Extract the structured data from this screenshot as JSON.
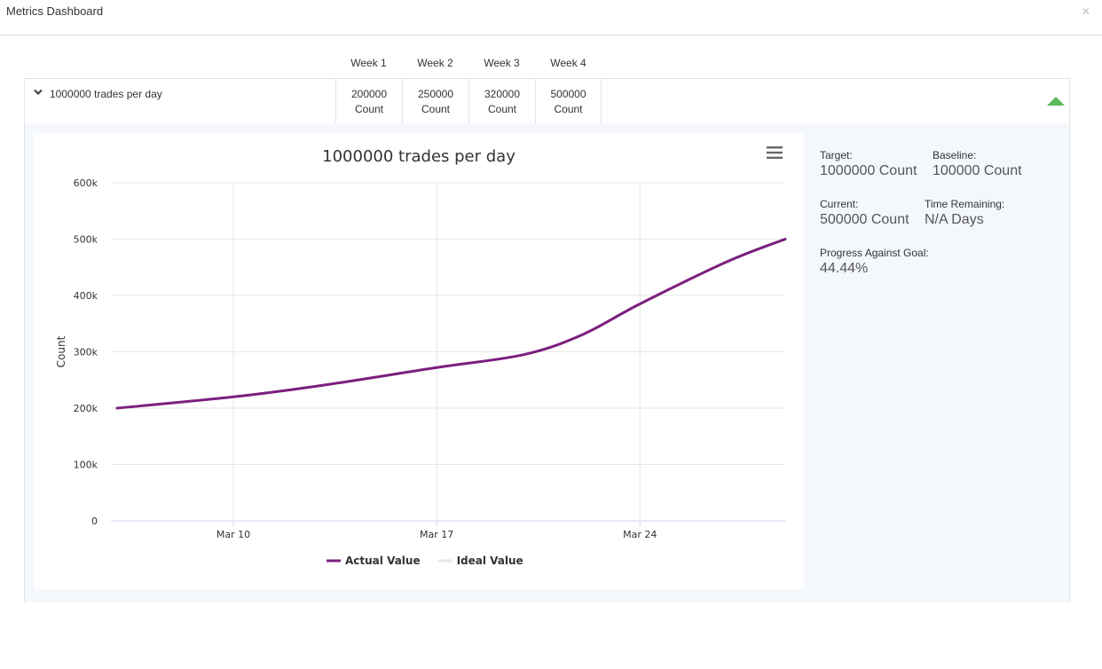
{
  "app": {
    "title": "Metrics Dashboard",
    "close_glyph": "×"
  },
  "weeks": [
    "Week 1",
    "Week 2",
    "Week 3",
    "Week 4"
  ],
  "metric": {
    "label": "1000000 trades per day",
    "cells": [
      {
        "value": "200000",
        "unit": "Count"
      },
      {
        "value": "250000",
        "unit": "Count"
      },
      {
        "value": "320000",
        "unit": "Count"
      },
      {
        "value": "500000",
        "unit": "Count"
      }
    ],
    "trend_color": "#5cb85c"
  },
  "stats": {
    "target_label": "Target:",
    "target_value": "1000000 Count",
    "baseline_label": "Baseline:",
    "baseline_value": "100000 Count",
    "current_label": "Current:",
    "current_value": "500000 Count",
    "time_label": "Time Remaining:",
    "time_value": "N/A Days",
    "progress_label": "Progress Against Goal:",
    "progress_value": "44.44%"
  },
  "chart_data": {
    "type": "line",
    "title": "1000000 trades per day",
    "xlabel": "",
    "ylabel": "Count",
    "y_ticks": [
      "0",
      "100k",
      "200k",
      "300k",
      "400k",
      "500k",
      "600k"
    ],
    "ylim": [
      0,
      600000
    ],
    "x_ticks": [
      {
        "label": "Mar 10",
        "date": "2024-03-10"
      },
      {
        "label": "Mar 17",
        "date": "2024-03-17"
      },
      {
        "label": "Mar 24",
        "date": "2024-03-24"
      }
    ],
    "xlim": [
      "2024-03-06",
      "2024-03-29"
    ],
    "grid": true,
    "legend_position": "bottom",
    "series": [
      {
        "name": "Actual Value",
        "color": "#7b1f7e",
        "points": [
          {
            "x": "2024-03-06",
            "y": 200000
          },
          {
            "x": "2024-03-10",
            "y": 220000
          },
          {
            "x": "2024-03-13",
            "y": 240000
          },
          {
            "x": "2024-03-17",
            "y": 272000
          },
          {
            "x": "2024-03-20",
            "y": 295000
          },
          {
            "x": "2024-03-22",
            "y": 330000
          },
          {
            "x": "2024-03-24",
            "y": 385000
          },
          {
            "x": "2024-03-27",
            "y": 460000
          },
          {
            "x": "2024-03-29",
            "y": 500000
          }
        ]
      },
      {
        "name": "Ideal Value",
        "color": "#e6e6e6",
        "points": []
      }
    ]
  }
}
